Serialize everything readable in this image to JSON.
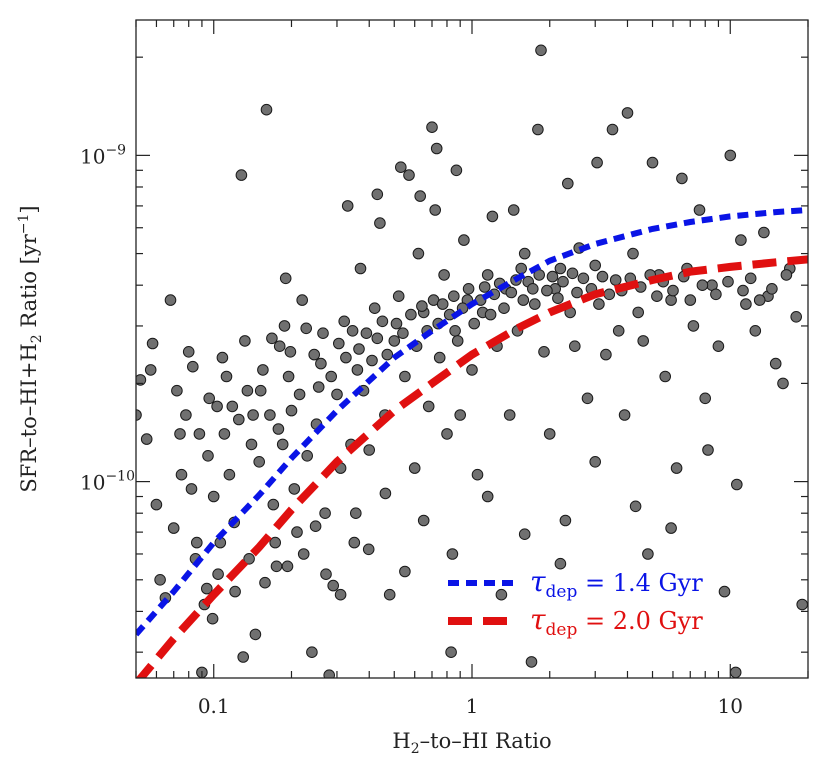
{
  "chart_data": {
    "type": "scatter",
    "xlabel": {
      "main": "H",
      "sub": "2",
      "rest": "–to–HI Ratio"
    },
    "ylabel": {
      "p1": "SFR–to–HI+H",
      "sub": "2",
      "p2": " Ratio [yr",
      "sup": "−1",
      "p3": "]"
    },
    "x_scale": "log",
    "y_scale": "log",
    "xlim": [
      0.05,
      20
    ],
    "ylim": [
      2.5e-11,
      2.6e-09
    ],
    "x_ticks": [
      {
        "value": 0.1,
        "label": "0.1"
      },
      {
        "value": 1,
        "label": "1"
      },
      {
        "value": 10,
        "label": "10"
      }
    ],
    "y_ticks": [
      {
        "value": 1e-10,
        "base": "10",
        "exp": "−10"
      },
      {
        "value": 1e-09,
        "base": "10",
        "exp": "−9"
      }
    ],
    "grid": false,
    "legend_position": "bottom-right",
    "point_color": "#707070",
    "series": [
      {
        "tau_prefix": "τ",
        "tau_sub": "dep",
        "value_text": " = 1.4 Gyr",
        "style": "dashed",
        "color": "#0a14e6",
        "tau_gyr": 1.4,
        "x": [
          0.05,
          0.07,
          0.1,
          0.15,
          0.2,
          0.3,
          0.5,
          0.7,
          1,
          1.5,
          2,
          3,
          5,
          7,
          10,
          15,
          20
        ],
        "y": [
          3.4e-11,
          4.6e-11,
          6.5e-11,
          9.1e-11,
          1.18e-10,
          1.65e-10,
          2.4e-10,
          2.9e-10,
          3.5e-10,
          4.2e-10,
          4.75e-10,
          5.35e-10,
          5.95e-10,
          6.25e-10,
          6.5e-10,
          6.7e-10,
          6.8e-10
        ]
      },
      {
        "tau_prefix": "τ",
        "tau_sub": "dep",
        "value_text": " = 2.0 Gyr",
        "style": "dashed",
        "color": "#e01010",
        "tau_gyr": 2.0,
        "x": [
          0.05,
          0.07,
          0.1,
          0.15,
          0.2,
          0.3,
          0.5,
          0.7,
          1,
          1.5,
          2,
          3,
          5,
          7,
          10,
          15,
          20
        ],
        "y": [
          2.4e-11,
          3.3e-11,
          4.5e-11,
          6.3e-11,
          8.2e-11,
          1.15e-10,
          1.65e-10,
          2e-10,
          2.45e-10,
          2.95e-10,
          3.3e-10,
          3.75e-10,
          4.15e-10,
          4.4e-10,
          4.55e-10,
          4.7e-10,
          4.8e-10
        ]
      }
    ],
    "points": [
      [
        0.05,
        1.6e-10
      ],
      [
        0.052,
        2.05e-10
      ],
      [
        0.055,
        1.35e-10
      ],
      [
        0.057,
        2.2e-10
      ],
      [
        0.06,
        8.5e-11
      ],
      [
        0.062,
        5e-11
      ],
      [
        0.065,
        4.4e-11
      ],
      [
        0.07,
        7.2e-11
      ],
      [
        0.072,
        1.9e-10
      ],
      [
        0.075,
        1.05e-10
      ],
      [
        0.078,
        1.6e-10
      ],
      [
        0.08,
        2.5e-10
      ],
      [
        0.082,
        9.5e-11
      ],
      [
        0.085,
        5.8e-11
      ],
      [
        0.088,
        1.4e-10
      ],
      [
        0.09,
        2.6e-11
      ],
      [
        0.092,
        4.2e-11
      ],
      [
        0.095,
        1.2e-10
      ],
      [
        0.1,
        9e-11
      ],
      [
        0.103,
        1.7e-10
      ],
      [
        0.106,
        6.5e-11
      ],
      [
        0.11,
        1.4e-10
      ],
      [
        0.112,
        2.1e-10
      ],
      [
        0.115,
        1.05e-10
      ],
      [
        0.12,
        7.5e-11
      ],
      [
        0.125,
        1.55e-10
      ],
      [
        0.128,
        8.7e-10
      ],
      [
        0.13,
        2.9e-11
      ],
      [
        0.135,
        1.9e-10
      ],
      [
        0.14,
        1.3e-10
      ],
      [
        0.145,
        3.4e-11
      ],
      [
        0.15,
        1.15e-10
      ],
      [
        0.155,
        2.2e-10
      ],
      [
        0.16,
        1.38e-09
      ],
      [
        0.165,
        1.6e-10
      ],
      [
        0.17,
        8.5e-11
      ],
      [
        0.175,
        5.5e-11
      ],
      [
        0.18,
        2.6e-10
      ],
      [
        0.185,
        1.3e-10
      ],
      [
        0.19,
        4.2e-10
      ],
      [
        0.195,
        2.1e-10
      ],
      [
        0.2,
        1.65e-10
      ],
      [
        0.205,
        9.5e-11
      ],
      [
        0.21,
        7e-11
      ],
      [
        0.22,
        3.6e-10
      ],
      [
        0.23,
        1.2e-10
      ],
      [
        0.24,
        3e-11
      ],
      [
        0.25,
        1.5e-10
      ],
      [
        0.26,
        2.3e-10
      ],
      [
        0.27,
        8e-11
      ],
      [
        0.28,
        2.55e-11
      ],
      [
        0.29,
        4.8e-11
      ],
      [
        0.3,
        1.85e-10
      ],
      [
        0.31,
        1.1e-10
      ],
      [
        0.32,
        3.1e-10
      ],
      [
        0.33,
        7e-10
      ],
      [
        0.34,
        1.3e-10
      ],
      [
        0.35,
        6.5e-11
      ],
      [
        0.36,
        2.2e-10
      ],
      [
        0.37,
        4.5e-10
      ],
      [
        0.38,
        1.9e-10
      ],
      [
        0.4,
        1.25e-10
      ],
      [
        0.42,
        3.4e-10
      ],
      [
        0.44,
        6.2e-10
      ],
      [
        0.46,
        1.6e-10
      ],
      [
        0.48,
        4.5e-11
      ],
      [
        0.5,
        2.7e-10
      ],
      [
        0.52,
        3.7e-10
      ],
      [
        0.55,
        2.1e-10
      ],
      [
        0.57,
        8.7e-10
      ],
      [
        0.6,
        1.1e-10
      ],
      [
        0.62,
        5e-10
      ],
      [
        0.65,
        3.3e-10
      ],
      [
        0.68,
        1.7e-10
      ],
      [
        0.7,
        1.22e-09
      ],
      [
        0.72,
        6.8e-10
      ],
      [
        0.75,
        2.4e-10
      ],
      [
        0.78,
        4.3e-10
      ],
      [
        0.8,
        1.4e-10
      ],
      [
        0.83,
        3e-11
      ],
      [
        0.86,
        2.9e-10
      ],
      [
        0.9,
        1.6e-10
      ],
      [
        0.93,
        5.5e-10
      ],
      [
        0.96,
        3.6e-10
      ],
      [
        1,
        2.2e-10
      ],
      [
        1.05,
        1.05e-10
      ],
      [
        1.1,
        3.3e-10
      ],
      [
        1.15,
        4.3e-10
      ],
      [
        1.2,
        6.5e-10
      ],
      [
        1.25,
        2.6e-10
      ],
      [
        1.3,
        4.5e-11
      ],
      [
        1.35,
        3.9e-10
      ],
      [
        1.4,
        1.6e-10
      ],
      [
        1.5,
        2.9e-10
      ],
      [
        1.55,
        4.5e-10
      ],
      [
        1.6,
        5e-10
      ],
      [
        1.7,
        2.8e-11
      ],
      [
        1.75,
        3.5e-10
      ],
      [
        1.8,
        1.2e-09
      ],
      [
        1.85,
        2.1e-09
      ],
      [
        1.9,
        2.5e-10
      ],
      [
        2,
        1.4e-10
      ],
      [
        2.1,
        3.9e-10
      ],
      [
        2.2,
        4.5e-10
      ],
      [
        2.3,
        7.6e-11
      ],
      [
        2.4,
        3.3e-10
      ],
      [
        2.5,
        2.6e-10
      ],
      [
        2.6,
        5.2e-10
      ],
      [
        2.8,
        1.8e-10
      ],
      [
        3,
        4.6e-10
      ],
      [
        3.1,
        3.5e-10
      ],
      [
        3.3,
        2.45e-10
      ],
      [
        3.5,
        1.2e-09
      ],
      [
        3.7,
        2.9e-10
      ],
      [
        3.9,
        1.6e-10
      ],
      [
        4,
        1.35e-09
      ],
      [
        4.2,
        5e-10
      ],
      [
        4.4,
        3.3e-10
      ],
      [
        4.6,
        2.7e-10
      ],
      [
        4.8,
        6e-11
      ],
      [
        5,
        9.5e-10
      ],
      [
        5.3,
        4.3e-10
      ],
      [
        5.6,
        2.1e-10
      ],
      [
        5.9,
        3.6e-10
      ],
      [
        6.2,
        1.1e-10
      ],
      [
        6.5,
        8.5e-10
      ],
      [
        6.8,
        4.5e-10
      ],
      [
        7.2,
        3e-10
      ],
      [
        7.6,
        6.8e-10
      ],
      [
        8,
        1.8e-10
      ],
      [
        8.5,
        4e-10
      ],
      [
        9,
        2.6e-10
      ],
      [
        9.5,
        4.6e-11
      ],
      [
        10,
        1e-09
      ],
      [
        10.5,
        2.6e-11
      ],
      [
        11,
        5.5e-10
      ],
      [
        11.5,
        3.5e-10
      ],
      [
        12.5,
        2.9e-10
      ],
      [
        13.5,
        5.8e-10
      ],
      [
        14,
        3.7e-10
      ],
      [
        15,
        2.3e-10
      ],
      [
        16,
        2e-10
      ],
      [
        17,
        4.5e-10
      ],
      [
        18,
        3.2e-10
      ],
      [
        19,
        4.2e-11
      ],
      [
        0.058,
        2.65e-10
      ],
      [
        0.068,
        3.6e-10
      ],
      [
        0.074,
        1.4e-10
      ],
      [
        0.083,
        2.25e-10
      ],
      [
        0.096,
        1.8e-10
      ],
      [
        0.108,
        2.4e-10
      ],
      [
        0.118,
        1.7e-10
      ],
      [
        0.132,
        2.7e-10
      ],
      [
        0.142,
        1.6e-10
      ],
      [
        0.152,
        1.9e-10
      ],
      [
        0.168,
        2.75e-10
      ],
      [
        0.178,
        1.45e-10
      ],
      [
        0.188,
        3e-10
      ],
      [
        0.198,
        2.5e-10
      ],
      [
        0.215,
        1.85e-10
      ],
      [
        0.228,
        2.95e-10
      ],
      [
        0.245,
        2.45e-10
      ],
      [
        0.255,
        1.95e-10
      ],
      [
        0.265,
        2.85e-10
      ],
      [
        0.285,
        2.1e-10
      ],
      [
        0.305,
        2.65e-10
      ],
      [
        0.325,
        2.4e-10
      ],
      [
        0.345,
        2.9e-10
      ],
      [
        0.365,
        2.55e-10
      ],
      [
        0.39,
        2.85e-10
      ],
      [
        0.41,
        2.35e-10
      ],
      [
        0.43,
        2.75e-10
      ],
      [
        0.45,
        3.1e-10
      ],
      [
        0.47,
        2.45e-10
      ],
      [
        0.51,
        3.05e-10
      ],
      [
        0.54,
        2.85e-10
      ],
      [
        0.58,
        3.25e-10
      ],
      [
        0.61,
        2.6e-10
      ],
      [
        0.64,
        3.45e-10
      ],
      [
        0.67,
        2.9e-10
      ],
      [
        0.71,
        3.6e-10
      ],
      [
        0.74,
        3.05e-10
      ],
      [
        0.77,
        3.5e-10
      ],
      [
        0.82,
        3.25e-10
      ],
      [
        0.85,
        3.7e-10
      ],
      [
        0.88,
        2.7e-10
      ],
      [
        0.92,
        3.4e-10
      ],
      [
        0.97,
        3.9e-10
      ],
      [
        1.02,
        3.05e-10
      ],
      [
        1.08,
        3.6e-10
      ],
      [
        1.12,
        3.95e-10
      ],
      [
        1.18,
        3.25e-10
      ],
      [
        1.22,
        3.75e-10
      ],
      [
        1.28,
        4.05e-10
      ],
      [
        1.33,
        3.4e-10
      ],
      [
        1.42,
        3.8e-10
      ],
      [
        1.48,
        4.15e-10
      ],
      [
        1.58,
        3.6e-10
      ],
      [
        1.65,
        4.1e-10
      ],
      [
        1.72,
        3.9e-10
      ],
      [
        1.82,
        4.3e-10
      ],
      [
        1.95,
        3.85e-10
      ],
      [
        2.05,
        4.25e-10
      ],
      [
        2.15,
        3.65e-10
      ],
      [
        2.25,
        4.1e-10
      ],
      [
        2.45,
        4.35e-10
      ],
      [
        2.55,
        3.8e-10
      ],
      [
        2.7,
        4.2e-10
      ],
      [
        2.9,
        3.9e-10
      ],
      [
        3.2,
        4.25e-10
      ],
      [
        3.4,
        3.75e-10
      ],
      [
        3.6,
        4.15e-10
      ],
      [
        3.8,
        3.85e-10
      ],
      [
        4.1,
        4.2e-10
      ],
      [
        4.5,
        3.95e-10
      ],
      [
        4.9,
        4.3e-10
      ],
      [
        5.2,
        3.7e-10
      ],
      [
        5.5,
        4.1e-10
      ],
      [
        6,
        3.85e-10
      ],
      [
        6.6,
        4.25e-10
      ],
      [
        7,
        3.6e-10
      ],
      [
        7.8,
        4e-10
      ],
      [
        8.8,
        3.75e-10
      ],
      [
        9.8,
        4.1e-10
      ],
      [
        11.2,
        3.85e-10
      ],
      [
        12,
        4.2e-10
      ],
      [
        13,
        3.6e-10
      ],
      [
        14.5,
        3.9e-10
      ],
      [
        16.5,
        4.3e-10
      ],
      [
        0.63,
        7.5e-10
      ],
      [
        0.73,
        1.05e-09
      ],
      [
        0.87,
        9e-10
      ],
      [
        1.45,
        6.8e-10
      ],
      [
        2.35,
        8.2e-10
      ],
      [
        3.05,
        9.5e-10
      ],
      [
        0.43,
        7.6e-10
      ],
      [
        0.53,
        9.2e-10
      ],
      [
        0.086,
        6.5e-11
      ],
      [
        0.094,
        4.7e-11
      ],
      [
        0.099,
        3.8e-11
      ],
      [
        0.104,
        5.2e-11
      ],
      [
        0.121,
        4.6e-11
      ],
      [
        0.137,
        5.8e-11
      ],
      [
        0.158,
        4.9e-11
      ],
      [
        0.173,
        6.5e-11
      ],
      [
        0.193,
        5.5e-11
      ],
      [
        0.223,
        6e-11
      ],
      [
        0.248,
        7.3e-11
      ],
      [
        0.272,
        5.2e-11
      ],
      [
        0.31,
        4.5e-11
      ],
      [
        0.355,
        8e-11
      ],
      [
        0.398,
        6.2e-11
      ],
      [
        0.462,
        9.2e-11
      ],
      [
        0.55,
        5.3e-11
      ],
      [
        0.65,
        7.6e-11
      ],
      [
        0.84,
        6e-11
      ],
      [
        1.15,
        9e-11
      ],
      [
        1.6,
        6.9e-11
      ],
      [
        2.2,
        5.6e-11
      ],
      [
        3,
        1.15e-10
      ],
      [
        4.3,
        8.4e-11
      ],
      [
        5.9,
        7.2e-11
      ],
      [
        8.2,
        1.25e-10
      ],
      [
        10.6,
        9.8e-11
      ]
    ]
  }
}
